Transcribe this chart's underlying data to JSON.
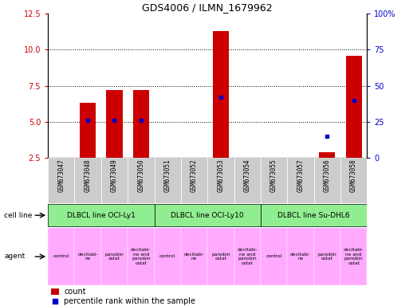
{
  "title": "GDS4006 / ILMN_1679962",
  "samples": [
    "GSM673047",
    "GSM673048",
    "GSM673049",
    "GSM673050",
    "GSM673051",
    "GSM673052",
    "GSM673053",
    "GSM673054",
    "GSM673055",
    "GSM673057",
    "GSM673056",
    "GSM673058"
  ],
  "counts": [
    null,
    6.3,
    7.2,
    7.2,
    null,
    null,
    11.3,
    null,
    null,
    null,
    2.9,
    9.6
  ],
  "percentiles": [
    null,
    26,
    26,
    26,
    null,
    null,
    42,
    null,
    null,
    null,
    15,
    40
  ],
  "ylim_left": [
    2.5,
    12.5
  ],
  "ylim_right": [
    0,
    100
  ],
  "yticks_left": [
    2.5,
    5.0,
    7.5,
    10.0,
    12.5
  ],
  "yticks_right": [
    0,
    25,
    50,
    75,
    100
  ],
  "cell_lines": [
    {
      "label": "DLBCL line OCI-Ly1",
      "start": 0,
      "end": 4
    },
    {
      "label": "DLBCL line OCI-Ly10",
      "start": 4,
      "end": 8
    },
    {
      "label": "DLBCL line Su-DHL6",
      "start": 8,
      "end": 12
    }
  ],
  "agent_labels": [
    "control",
    "decitabi-\nne",
    "panobin\nostat",
    "decitabi-\nne and\npanobin\nostat",
    "control",
    "decitabi-\nne",
    "panobin\nostat",
    "decitabi-\nne and\npanobin\nostat",
    "control",
    "decitabi-\nne",
    "panobin\nostat",
    "decitabi-\nne and\npanobin\nostat"
  ],
  "bar_color": "#cc0000",
  "dot_color": "#0000cc",
  "tick_color_left": "#cc0000",
  "tick_color_right": "#0000cc",
  "agent_bg": "#ffaaff",
  "cellline_bg": "#90ee90",
  "sample_bg": "#cccccc",
  "grid_lines": [
    5.0,
    7.5,
    10.0
  ],
  "bar_width": 0.6
}
